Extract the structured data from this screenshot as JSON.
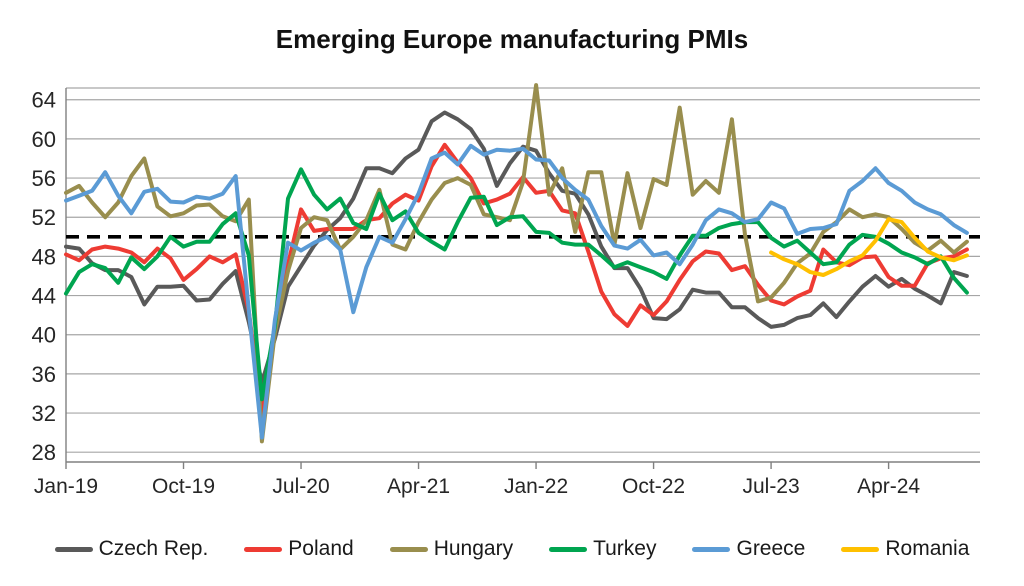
{
  "title": "Emerging Europe manufacturing PMIs",
  "legend": {
    "position": "bottom"
  },
  "colors": {
    "gridline": "#a6a6a6",
    "axis": "#808080",
    "tick_label": "#262626",
    "reference_line": "#000000"
  },
  "chart_data": {
    "type": "line",
    "title": "Emerging Europe manufacturing PMIs",
    "xlabel": "",
    "ylabel": "",
    "x_start": "Jan-19",
    "x_end": "Oct-24",
    "x_frequency": "monthly",
    "x_total_months": 70,
    "x_tick_labels": [
      "Jan-19",
      "Oct-19",
      "Jul-20",
      "Apr-21",
      "Jan-22",
      "Oct-22",
      "Jul-23",
      "Apr-24"
    ],
    "x_tick_month_index": [
      0,
      9,
      18,
      27,
      36,
      45,
      54,
      63
    ],
    "y_ticks": [
      64,
      60,
      56,
      52,
      48,
      44,
      40,
      36,
      32,
      28
    ],
    "ylim": [
      27,
      65.2
    ],
    "grid": "horizontal",
    "reference_line": {
      "value": 50,
      "style": "dashed",
      "color": "#000000"
    },
    "legend_position": "bottom",
    "series": [
      {
        "name": "Czech Rep.",
        "color": "#595959",
        "start_index": 0,
        "values": [
          49.0,
          48.8,
          47.3,
          46.6,
          46.6,
          45.9,
          43.1,
          44.9,
          44.9,
          45.0,
          43.5,
          43.6,
          45.2,
          46.5,
          41.3,
          35.1,
          39.6,
          44.9,
          47.0,
          49.1,
          50.7,
          51.9,
          53.9,
          57.0,
          57.0,
          56.5,
          58.0,
          58.9,
          61.8,
          62.7,
          62.0,
          61.0,
          59.0,
          55.2,
          57.5,
          59.2,
          58.8,
          56.5,
          54.7,
          54.4,
          52.3,
          49.0,
          46.8,
          46.8,
          44.7,
          41.7,
          41.6,
          42.6,
          44.6,
          44.3,
          44.3,
          42.8,
          42.8,
          41.7,
          40.8,
          41.0,
          41.7,
          42.0,
          43.2,
          41.8,
          43.4,
          44.9,
          46.0,
          44.9,
          45.7,
          44.7,
          44.0,
          43.2,
          46.4,
          46.0
        ]
      },
      {
        "name": "Poland",
        "color": "#ee3b33",
        "start_index": 0,
        "values": [
          48.2,
          47.6,
          48.7,
          49.0,
          48.8,
          48.4,
          47.4,
          48.8,
          47.8,
          45.6,
          46.7,
          48.0,
          47.4,
          48.2,
          42.4,
          31.9,
          40.6,
          47.2,
          52.8,
          50.6,
          50.8,
          50.8,
          50.8,
          51.7,
          51.9,
          53.4,
          54.3,
          53.7,
          57.2,
          59.4,
          57.6,
          56.0,
          53.4,
          53.8,
          54.4,
          56.1,
          54.5,
          54.7,
          52.7,
          52.4,
          48.5,
          44.4,
          42.1,
          40.9,
          43.0,
          42.0,
          43.4,
          45.6,
          47.5,
          48.5,
          48.3,
          46.6,
          47.0,
          45.1,
          43.5,
          43.1,
          43.9,
          44.5,
          48.7,
          47.4,
          47.1,
          47.9,
          48.0,
          45.9,
          45.0,
          45.0,
          47.3,
          47.8,
          48.0,
          48.7
        ]
      },
      {
        "name": "Hungary",
        "color": "#998e4e",
        "start_index": 0,
        "values": [
          54.5,
          55.2,
          53.5,
          52.0,
          53.5,
          56.2,
          58.0,
          53.1,
          52.1,
          52.4,
          53.2,
          53.3,
          52.1,
          51.6,
          53.8,
          29.1,
          40.2,
          46.5,
          50.9,
          52.0,
          51.7,
          48.7,
          50.0,
          51.7,
          54.8,
          49.2,
          48.7,
          51.5,
          53.8,
          55.5,
          56.0,
          55.3,
          52.3,
          52.0,
          51.7,
          55.6,
          65.5,
          54.3,
          57.0,
          50.5,
          56.6,
          56.6,
          49.2,
          56.5,
          50.9,
          55.9,
          55.3,
          63.2,
          54.3,
          55.7,
          54.5,
          62.0,
          50.2,
          43.4,
          43.8,
          45.3,
          47.3,
          48.3,
          50.5,
          51.5,
          52.8,
          52.0,
          52.3,
          52.0,
          50.8,
          49.4,
          48.6,
          49.6,
          48.4,
          49.5
        ]
      },
      {
        "name": "Turkey",
        "color": "#00a550",
        "start_index": 0,
        "values": [
          44.2,
          46.4,
          47.2,
          46.8,
          45.3,
          47.9,
          46.7,
          48.0,
          50.0,
          49.0,
          49.5,
          49.5,
          51.3,
          52.4,
          48.1,
          33.4,
          40.9,
          53.9,
          56.9,
          54.3,
          52.8,
          53.9,
          51.4,
          50.8,
          54.4,
          51.7,
          52.6,
          50.4,
          49.5,
          48.7,
          51.5,
          54.0,
          54.1,
          51.2,
          52.0,
          52.1,
          50.5,
          50.4,
          49.4,
          49.2,
          49.2,
          48.1,
          46.9,
          47.4,
          46.9,
          46.4,
          45.7,
          48.1,
          50.1,
          50.1,
          50.9,
          51.3,
          51.5,
          51.5,
          49.9,
          49.0,
          49.6,
          48.4,
          47.2,
          47.4,
          49.2,
          50.2,
          50.0,
          49.3,
          48.4,
          47.9,
          47.2,
          48.0,
          45.8,
          44.3
        ]
      },
      {
        "name": "Greece",
        "color": "#5b9bd5",
        "start_index": 0,
        "values": [
          53.7,
          54.2,
          54.7,
          56.6,
          54.2,
          52.4,
          54.6,
          54.9,
          53.6,
          53.5,
          54.1,
          53.9,
          54.4,
          56.2,
          42.5,
          29.5,
          41.5,
          49.4,
          48.6,
          49.4,
          50.0,
          48.7,
          42.3,
          46.9,
          50.0,
          49.4,
          51.8,
          54.4,
          58.0,
          58.6,
          57.4,
          59.3,
          58.4,
          58.9,
          58.8,
          59.0,
          57.9,
          57.8,
          56.0,
          54.8,
          53.8,
          51.1,
          49.1,
          48.8,
          49.7,
          48.1,
          48.4,
          47.2,
          49.2,
          51.7,
          52.8,
          52.4,
          51.5,
          51.8,
          53.5,
          52.9,
          50.3,
          50.8,
          50.9,
          51.3,
          54.7,
          55.7,
          57.0,
          55.5,
          54.7,
          53.5,
          52.8,
          52.3,
          51.2,
          50.4
        ]
      },
      {
        "name": "Romania",
        "color": "#ffc000",
        "start_index": 54,
        "values": [
          48.4,
          47.7,
          47.2,
          46.4,
          46.1,
          46.7,
          47.5,
          48.1,
          49.6,
          51.8,
          51.5,
          49.9,
          48.5,
          47.9,
          47.6,
          48.1
        ]
      }
    ]
  }
}
